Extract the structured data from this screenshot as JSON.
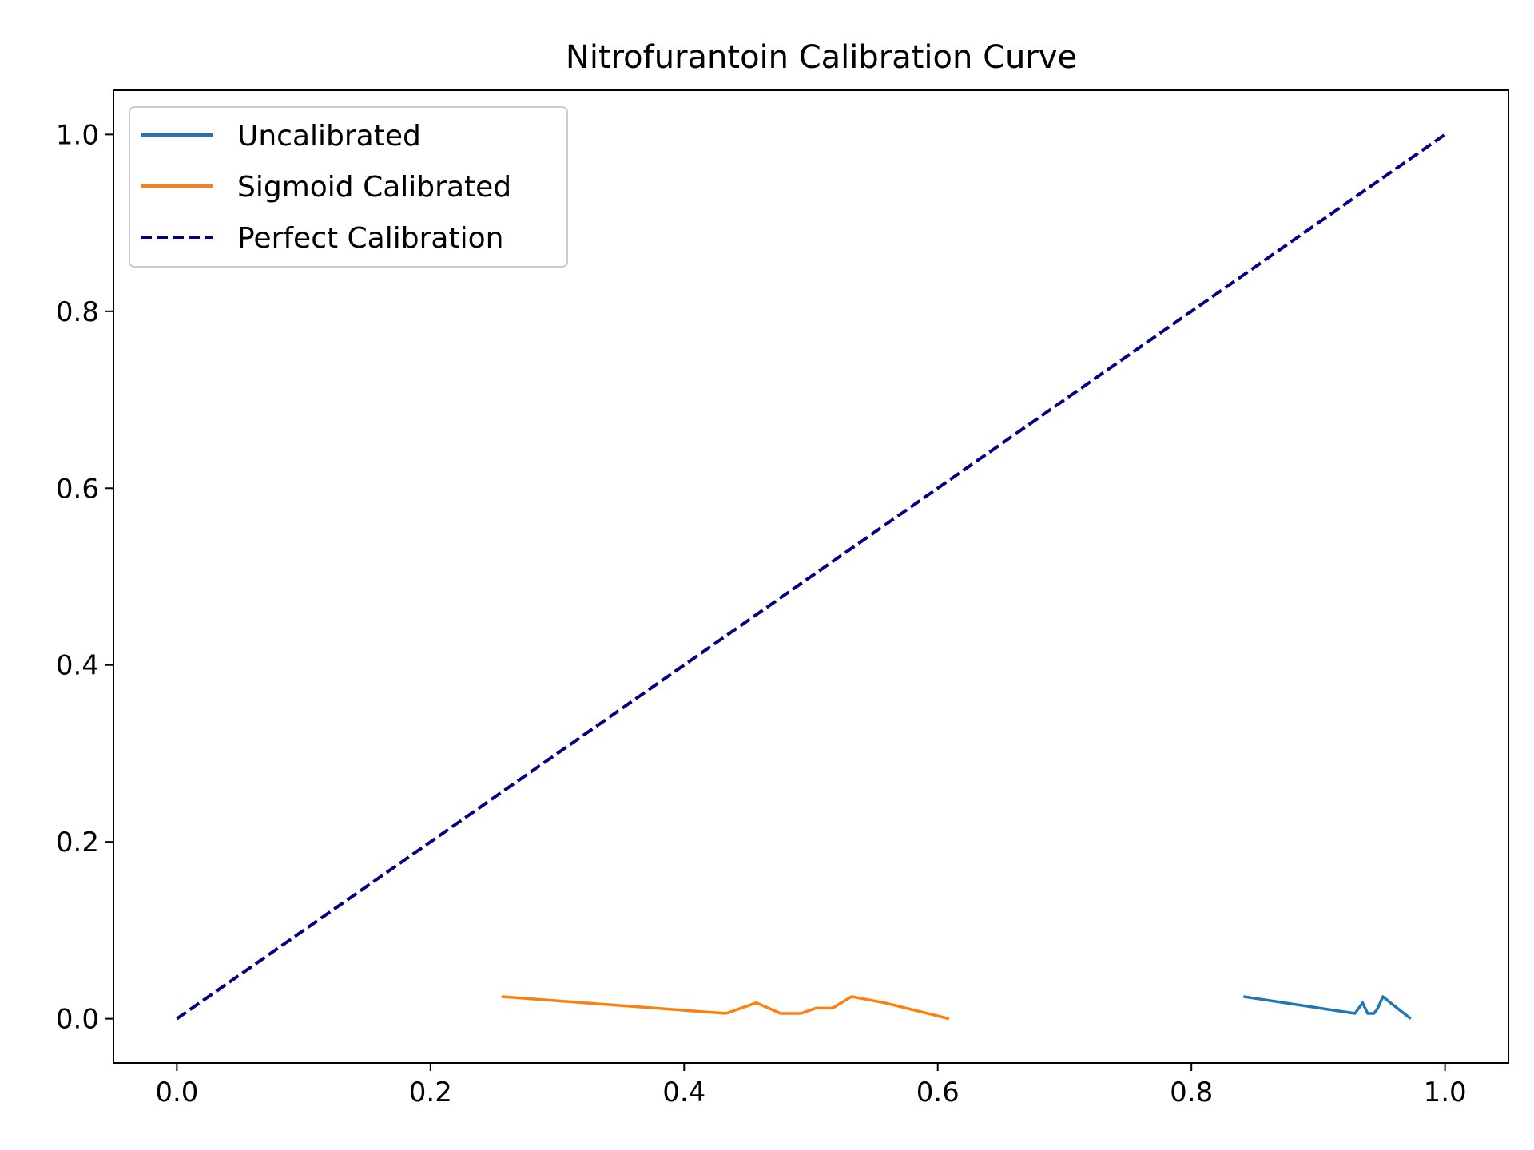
{
  "chart_data": {
    "type": "line",
    "title": "Nitrofurantoin Calibration Curve",
    "xlabel": "",
    "ylabel": "",
    "xlim": [
      -0.05,
      1.05
    ],
    "ylim": [
      -0.05,
      1.05
    ],
    "xticks": [
      0.0,
      0.2,
      0.4,
      0.6,
      0.8,
      1.0
    ],
    "yticks": [
      0.0,
      0.2,
      0.4,
      0.6,
      0.8,
      1.0
    ],
    "xtick_labels": [
      "0.0",
      "0.2",
      "0.4",
      "0.6",
      "0.8",
      "1.0"
    ],
    "ytick_labels": [
      "0.0",
      "0.2",
      "0.4",
      "0.6",
      "0.8",
      "1.0"
    ],
    "grid": false,
    "legend_position": "top-left",
    "series": [
      {
        "name": "Uncalibrated",
        "color": "#1f77b4",
        "style": "solid",
        "x": [
          0.841,
          0.929,
          0.935,
          0.939,
          0.944,
          0.947,
          0.951,
          0.957,
          0.973
        ],
        "y": [
          0.025,
          0.006,
          0.018,
          0.006,
          0.006,
          0.012,
          0.025,
          0.018,
          0.0
        ]
      },
      {
        "name": "Sigmoid Calibrated",
        "color": "#ff7f0e",
        "style": "solid",
        "x": [
          0.256,
          0.433,
          0.457,
          0.476,
          0.492,
          0.504,
          0.517,
          0.532,
          0.558,
          0.609
        ],
        "y": [
          0.025,
          0.006,
          0.018,
          0.006,
          0.006,
          0.012,
          0.012,
          0.025,
          0.018,
          0.0
        ]
      },
      {
        "name": "Perfect Calibration",
        "color": "#000080",
        "style": "dashed",
        "x": [
          0.0,
          1.0
        ],
        "y": [
          0.0,
          1.0
        ]
      }
    ]
  }
}
